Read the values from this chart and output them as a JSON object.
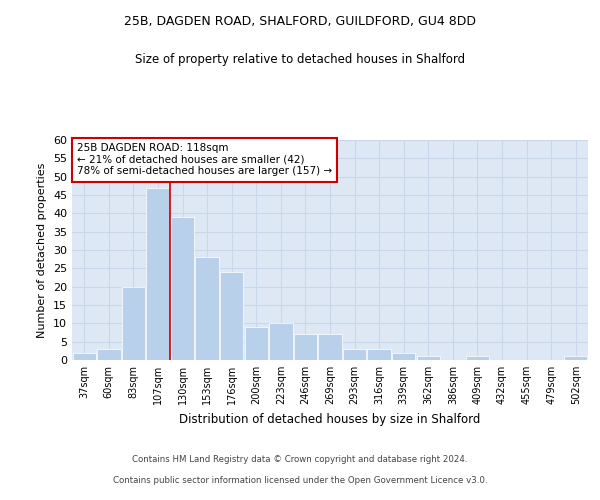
{
  "title1": "25B, DAGDEN ROAD, SHALFORD, GUILDFORD, GU4 8DD",
  "title2": "Size of property relative to detached houses in Shalford",
  "xlabel": "Distribution of detached houses by size in Shalford",
  "ylabel": "Number of detached properties",
  "categories": [
    "37sqm",
    "60sqm",
    "83sqm",
    "107sqm",
    "130sqm",
    "153sqm",
    "176sqm",
    "200sqm",
    "223sqm",
    "246sqm",
    "269sqm",
    "293sqm",
    "316sqm",
    "339sqm",
    "362sqm",
    "386sqm",
    "409sqm",
    "432sqm",
    "455sqm",
    "479sqm",
    "502sqm"
  ],
  "values": [
    2,
    3,
    20,
    47,
    39,
    28,
    24,
    9,
    10,
    7,
    7,
    3,
    3,
    2,
    1,
    0,
    1,
    0,
    0,
    0,
    1
  ],
  "bar_color": "#b8d0ea",
  "vline_x": 3.5,
  "vline_color": "#cc0000",
  "annotation_text": "25B DAGDEN ROAD: 118sqm\n← 21% of detached houses are smaller (42)\n78% of semi-detached houses are larger (157) →",
  "annotation_box_color": "white",
  "annotation_box_edgecolor": "#cc0000",
  "ylim": [
    0,
    60
  ],
  "yticks": [
    0,
    5,
    10,
    15,
    20,
    25,
    30,
    35,
    40,
    45,
    50,
    55,
    60
  ],
  "grid_color": "#c8d8ea",
  "background_color": "#dde8f4",
  "footer1": "Contains HM Land Registry data © Crown copyright and database right 2024.",
  "footer2": "Contains public sector information licensed under the Open Government Licence v3.0."
}
